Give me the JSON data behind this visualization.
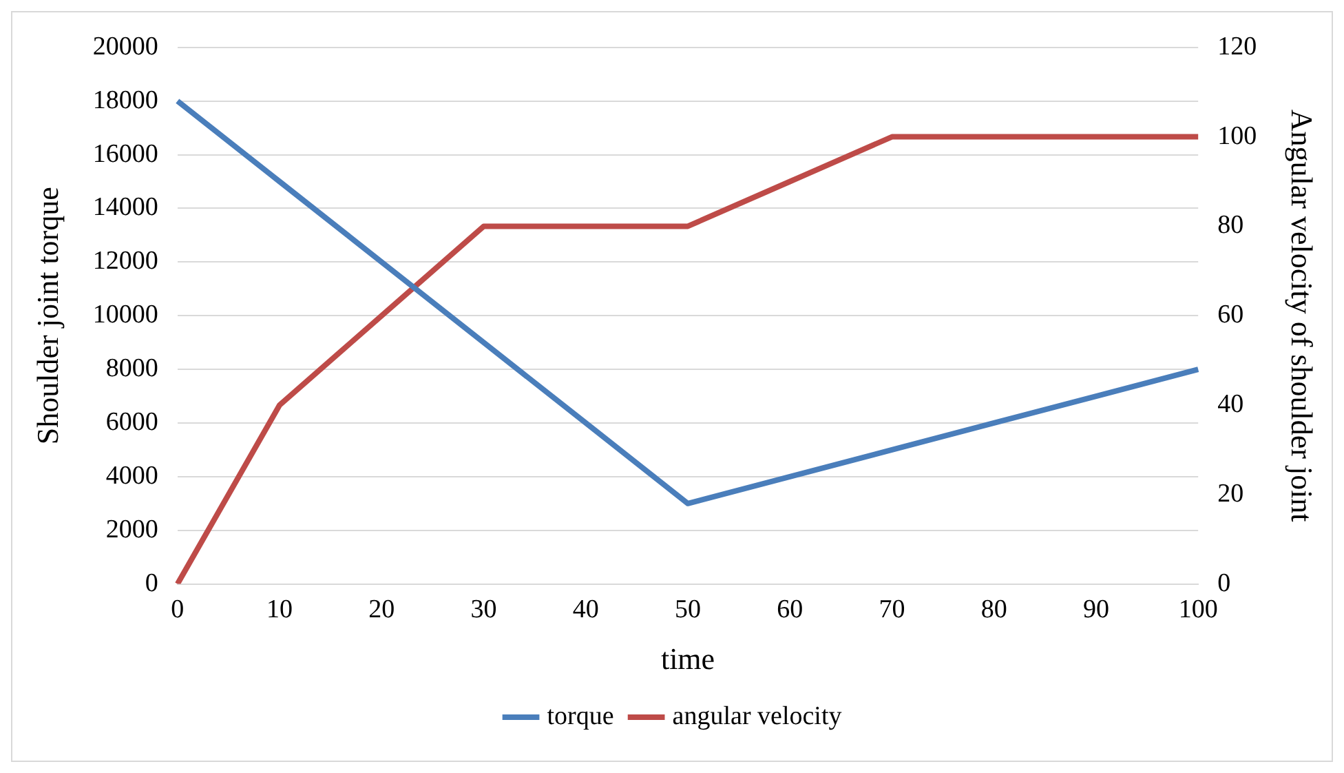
{
  "chart_data": {
    "type": "line",
    "xlabel": "time",
    "ylabel": "Shoulder joint torque",
    "y2label": "Angular velocity of shoulder joint",
    "categories": [
      "0",
      "10",
      "20",
      "30",
      "40",
      "50",
      "60",
      "70",
      "80",
      "90",
      "100"
    ],
    "series": [
      {
        "name": "torque",
        "color": "#4a7ebb",
        "values": [
          18000,
          15000,
          12000,
          9000,
          6000,
          3000,
          4000,
          5000,
          6000,
          7000,
          8000
        ]
      },
      {
        "name": "angular velocity",
        "color": "#be4b48",
        "axis": "y2",
        "values": [
          0,
          40,
          60,
          80,
          80,
          80,
          90,
          100,
          100,
          100,
          100
        ]
      }
    ],
    "ylim": [
      0,
      20000
    ],
    "yticks": [
      0,
      2000,
      4000,
      6000,
      8000,
      10000,
      12000,
      14000,
      16000,
      18000,
      20000
    ],
    "y2lim": [
      0,
      120
    ],
    "y2ticks": [
      0,
      20,
      40,
      60,
      80,
      100,
      120
    ],
    "grid": "y",
    "legend": "bottom",
    "marker": "none",
    "line_style": "solid"
  }
}
